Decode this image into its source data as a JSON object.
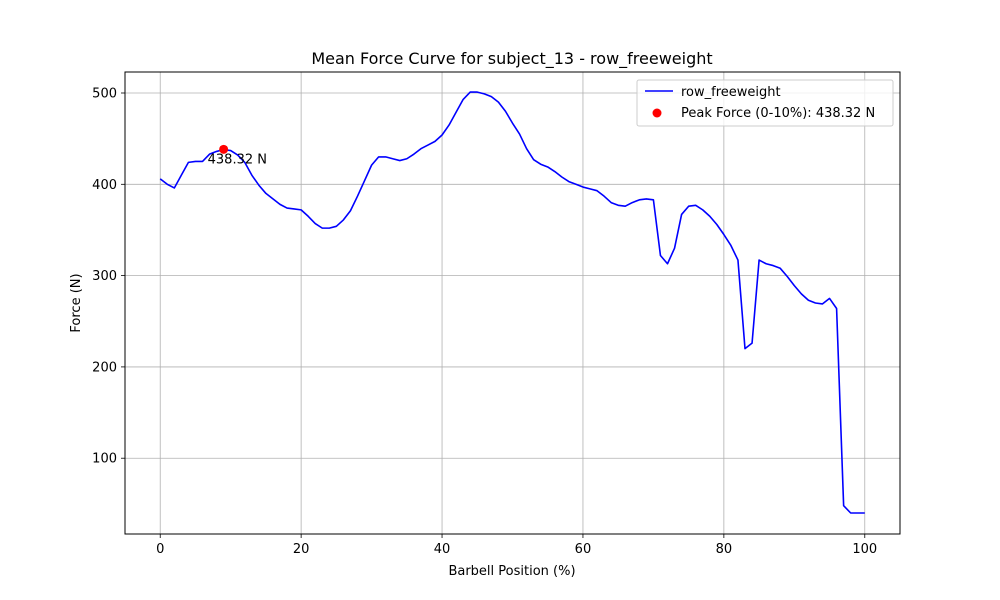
{
  "chart_data": {
    "type": "line",
    "title": "Mean Force Curve for subject_13 - row_freeweight",
    "xlabel": "Barbell Position (%)",
    "ylabel": "Force (N)",
    "xlim": [
      -5,
      105
    ],
    "ylim": [
      17,
      523
    ],
    "xticks": [
      0,
      20,
      40,
      60,
      80,
      100
    ],
    "yticks": [
      100,
      200,
      300,
      400,
      500
    ],
    "grid": true,
    "legend_position": "top-right",
    "series": [
      {
        "name": "row_freeweight",
        "color": "#0000ff",
        "x": [
          0,
          1,
          2,
          3,
          4,
          5,
          6,
          7,
          8,
          9,
          10,
          11,
          12,
          13,
          14,
          15,
          16,
          17,
          18,
          19,
          20,
          21,
          22,
          23,
          24,
          25,
          26,
          27,
          28,
          29,
          30,
          31,
          32,
          33,
          34,
          35,
          36,
          37,
          38,
          39,
          40,
          41,
          42,
          43,
          44,
          45,
          46,
          47,
          48,
          49,
          50,
          51,
          52,
          53,
          54,
          55,
          56,
          57,
          58,
          59,
          60,
          61,
          62,
          63,
          64,
          65,
          66,
          67,
          68,
          69,
          70,
          71,
          72,
          73,
          74,
          75,
          76,
          77,
          78,
          79,
          80,
          81,
          82,
          83,
          84,
          85,
          86,
          87,
          88,
          89,
          90,
          91,
          92,
          93,
          94,
          95,
          96,
          97,
          98,
          99,
          100
        ],
        "y": [
          406,
          400,
          396,
          410,
          424,
          425,
          425,
          433,
          436,
          438,
          437,
          432,
          424,
          410,
          399,
          390,
          384,
          378,
          374,
          373,
          372,
          365,
          357,
          352,
          352,
          354,
          361,
          371,
          387,
          404,
          421,
          430,
          430,
          428,
          426,
          428,
          433,
          439,
          443,
          447,
          454,
          465,
          479,
          493,
          501,
          501,
          499,
          496,
          490,
          480,
          467,
          455,
          439,
          427,
          422,
          419,
          414,
          408,
          403,
          400,
          397,
          395,
          393,
          387,
          380,
          377,
          376,
          380,
          383,
          384,
          383,
          322,
          313,
          330,
          367,
          376,
          377,
          372,
          365,
          356,
          345,
          333,
          317,
          220,
          226,
          317,
          313,
          311,
          308,
          299,
          289,
          280,
          273,
          270,
          269,
          275,
          264,
          48,
          40,
          40,
          40
        ]
      }
    ],
    "peak": {
      "name": "Peak Force (0-10%): 438.32 N",
      "x": 9,
      "y": 438.32,
      "label": "438.32 N",
      "color": "#ff0000"
    }
  }
}
